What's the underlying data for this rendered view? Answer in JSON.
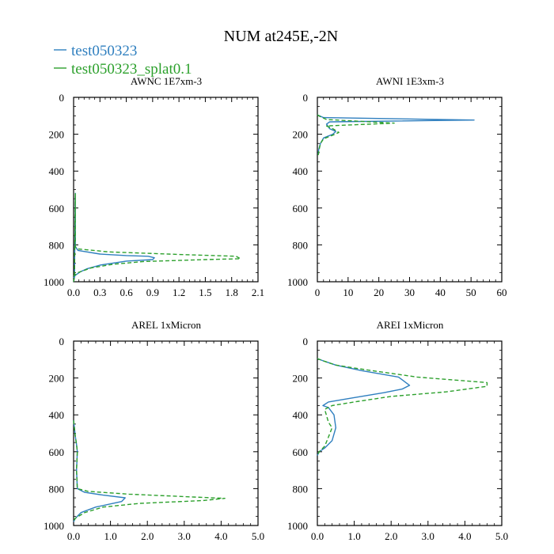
{
  "chart_data": {
    "title": "NUM at245E,-2N",
    "legend": [
      {
        "label": "test050323",
        "color": "#2f7fbf",
        "dash": "solid"
      },
      {
        "label": "test050323_splat0.1",
        "color": "#2ca02c",
        "dash": "dashed"
      }
    ],
    "panels": [
      {
        "type": "line",
        "title": "AWNC  1E7xm-3",
        "xlim": [
          0,
          2.1
        ],
        "ylim": [
          1000,
          0
        ],
        "xticks": [
          "0.0",
          "0.3",
          "0.6",
          "0.9",
          "1.2",
          "1.5",
          "1.8",
          "2.1"
        ],
        "xtick_values": [
          0,
          0.3,
          0.6,
          0.9,
          1.2,
          1.5,
          1.8,
          2.1
        ],
        "yticks": [
          "0",
          "200",
          "400",
          "600",
          "800",
          "1000"
        ],
        "ytick_values": [
          0,
          200,
          400,
          600,
          800,
          1000
        ],
        "series": [
          {
            "name": "test050323",
            "points": [
              [
                0,
                1000
              ],
              [
                0.01,
                975
              ],
              [
                0.02,
                520
              ],
              [
                0.02,
                780
              ],
              [
                0.02,
                810
              ],
              [
                0.05,
                830
              ],
              [
                0.3,
                850
              ],
              [
                0.6,
                858
              ],
              [
                0.85,
                862
              ],
              [
                0.92,
                870
              ],
              [
                0.9,
                880
              ],
              [
                0.6,
                888
              ],
              [
                0.3,
                910
              ],
              [
                0.15,
                930
              ],
              [
                0.08,
                945
              ],
              [
                0.02,
                965
              ],
              [
                0,
                980
              ]
            ]
          },
          {
            "name": "test050323_splat0.1",
            "points": [
              [
                0,
                1000
              ],
              [
                0.01,
                975
              ],
              [
                0.02,
                520
              ],
              [
                0.02,
                780
              ],
              [
                0.02,
                810
              ],
              [
                0.05,
                822
              ],
              [
                0.4,
                838
              ],
              [
                1.2,
                852
              ],
              [
                1.85,
                862
              ],
              [
                1.9,
                875
              ],
              [
                1.5,
                880
              ],
              [
                0.8,
                890
              ],
              [
                0.45,
                905
              ],
              [
                0.2,
                925
              ],
              [
                0.05,
                950
              ],
              [
                0,
                970
              ]
            ]
          }
        ]
      },
      {
        "type": "line",
        "title": "AWNI  1E3xm-3",
        "xlim": [
          0,
          60
        ],
        "ylim": [
          1000,
          0
        ],
        "xticks": [
          "0",
          "10",
          "20",
          "30",
          "40",
          "50",
          "60"
        ],
        "xtick_values": [
          0,
          10,
          20,
          30,
          40,
          50,
          60
        ],
        "yticks": [
          "0",
          "200",
          "400",
          "600",
          "800",
          "1000"
        ],
        "ytick_values": [
          0,
          200,
          400,
          600,
          800,
          1000
        ],
        "series": [
          {
            "name": "test050323",
            "points": [
              [
                0,
                95
              ],
              [
                2,
                110
              ],
              [
                51,
                123
              ],
              [
                4,
                133
              ],
              [
                3,
                145
              ],
              [
                4,
                170
              ],
              [
                6,
                185
              ],
              [
                5,
                200
              ],
              [
                2,
                220
              ],
              [
                1,
                250
              ],
              [
                0.5,
                280
              ],
              [
                0.2,
                310
              ]
            ]
          },
          {
            "name": "test050323_splat0.1",
            "points": [
              [
                0,
                95
              ],
              [
                1,
                105
              ],
              [
                3,
                120
              ],
              [
                25,
                140
              ],
              [
                3,
                155
              ],
              [
                5,
                170
              ],
              [
                7,
                190
              ],
              [
                5,
                205
              ],
              [
                2,
                225
              ],
              [
                1,
                250
              ],
              [
                0.5,
                290
              ],
              [
                0.2,
                320
              ]
            ]
          }
        ]
      },
      {
        "type": "line",
        "title": "AREL  1xMicron",
        "xlim": [
          0,
          5.0
        ],
        "ylim": [
          1000,
          0
        ],
        "xticks": [
          "0.0",
          "1.0",
          "2.0",
          "3.0",
          "4.0",
          "5.0"
        ],
        "xtick_values": [
          0,
          1,
          2,
          3,
          4,
          5
        ],
        "yticks": [
          "0",
          "200",
          "400",
          "600",
          "800",
          "1000"
        ],
        "ytick_values": [
          0,
          200,
          400,
          600,
          800,
          1000
        ],
        "series": [
          {
            "name": "test050323",
            "points": [
              [
                0,
                430
              ],
              [
                0.05,
                520
              ],
              [
                0.08,
                560
              ],
              [
                0.1,
                600
              ],
              [
                0.08,
                700
              ],
              [
                0.1,
                800
              ],
              [
                0.3,
                820
              ],
              [
                0.8,
                835
              ],
              [
                1.4,
                850
              ],
              [
                1.3,
                870
              ],
              [
                0.6,
                900
              ],
              [
                0.2,
                930
              ],
              [
                0.05,
                960
              ],
              [
                0,
                980
              ]
            ]
          },
          {
            "name": "test050323_splat0.1",
            "points": [
              [
                0,
                430
              ],
              [
                0.05,
                520
              ],
              [
                0.08,
                560
              ],
              [
                0.1,
                600
              ],
              [
                0.08,
                700
              ],
              [
                0.1,
                800
              ],
              [
                0.4,
                815
              ],
              [
                1.5,
                830
              ],
              [
                3.2,
                845
              ],
              [
                4.1,
                853
              ],
              [
                3.5,
                865
              ],
              [
                1.8,
                880
              ],
              [
                0.8,
                900
              ],
              [
                0.3,
                930
              ],
              [
                0.05,
                960
              ],
              [
                0,
                975
              ]
            ]
          }
        ]
      },
      {
        "type": "line",
        "title": "AREI  1xMicron",
        "xlim": [
          0,
          5.0
        ],
        "ylim": [
          1000,
          0
        ],
        "xticks": [
          "0.0",
          "1.0",
          "2.0",
          "3.0",
          "4.0",
          "5.0"
        ],
        "xtick_values": [
          0,
          1,
          2,
          3,
          4,
          5
        ],
        "yticks": [
          "0",
          "200",
          "400",
          "600",
          "800",
          "1000"
        ],
        "ytick_values": [
          0,
          200,
          400,
          600,
          800,
          1000
        ],
        "series": [
          {
            "name": "test050323",
            "points": [
              [
                0,
                95
              ],
              [
                0.2,
                110
              ],
              [
                0.5,
                130
              ],
              [
                1.2,
                160
              ],
              [
                2.2,
                195
              ],
              [
                2.5,
                240
              ],
              [
                2.3,
                260
              ],
              [
                1.8,
                280
              ],
              [
                0.9,
                310
              ],
              [
                0.3,
                330
              ],
              [
                0.15,
                350
              ],
              [
                0.3,
                360
              ],
              [
                0.45,
                400
              ],
              [
                0.5,
                470
              ],
              [
                0.4,
                540
              ],
              [
                0.2,
                580
              ],
              [
                0.05,
                600
              ],
              [
                0,
                620
              ]
            ]
          },
          {
            "name": "test050323_splat0.1",
            "points": [
              [
                0,
                95
              ],
              [
                0.2,
                110
              ],
              [
                0.5,
                130
              ],
              [
                1.3,
                155
              ],
              [
                2.7,
                195
              ],
              [
                4.6,
                225
              ],
              [
                4.6,
                245
              ],
              [
                3.5,
                275
              ],
              [
                2.0,
                300
              ],
              [
                1.0,
                330
              ],
              [
                0.4,
                350
              ],
              [
                0.2,
                370
              ],
              [
                0.3,
                440
              ],
              [
                0.4,
                470
              ],
              [
                0.3,
                520
              ],
              [
                0.2,
                570
              ],
              [
                0.05,
                600
              ],
              [
                0,
                620
              ]
            ]
          }
        ]
      }
    ]
  }
}
